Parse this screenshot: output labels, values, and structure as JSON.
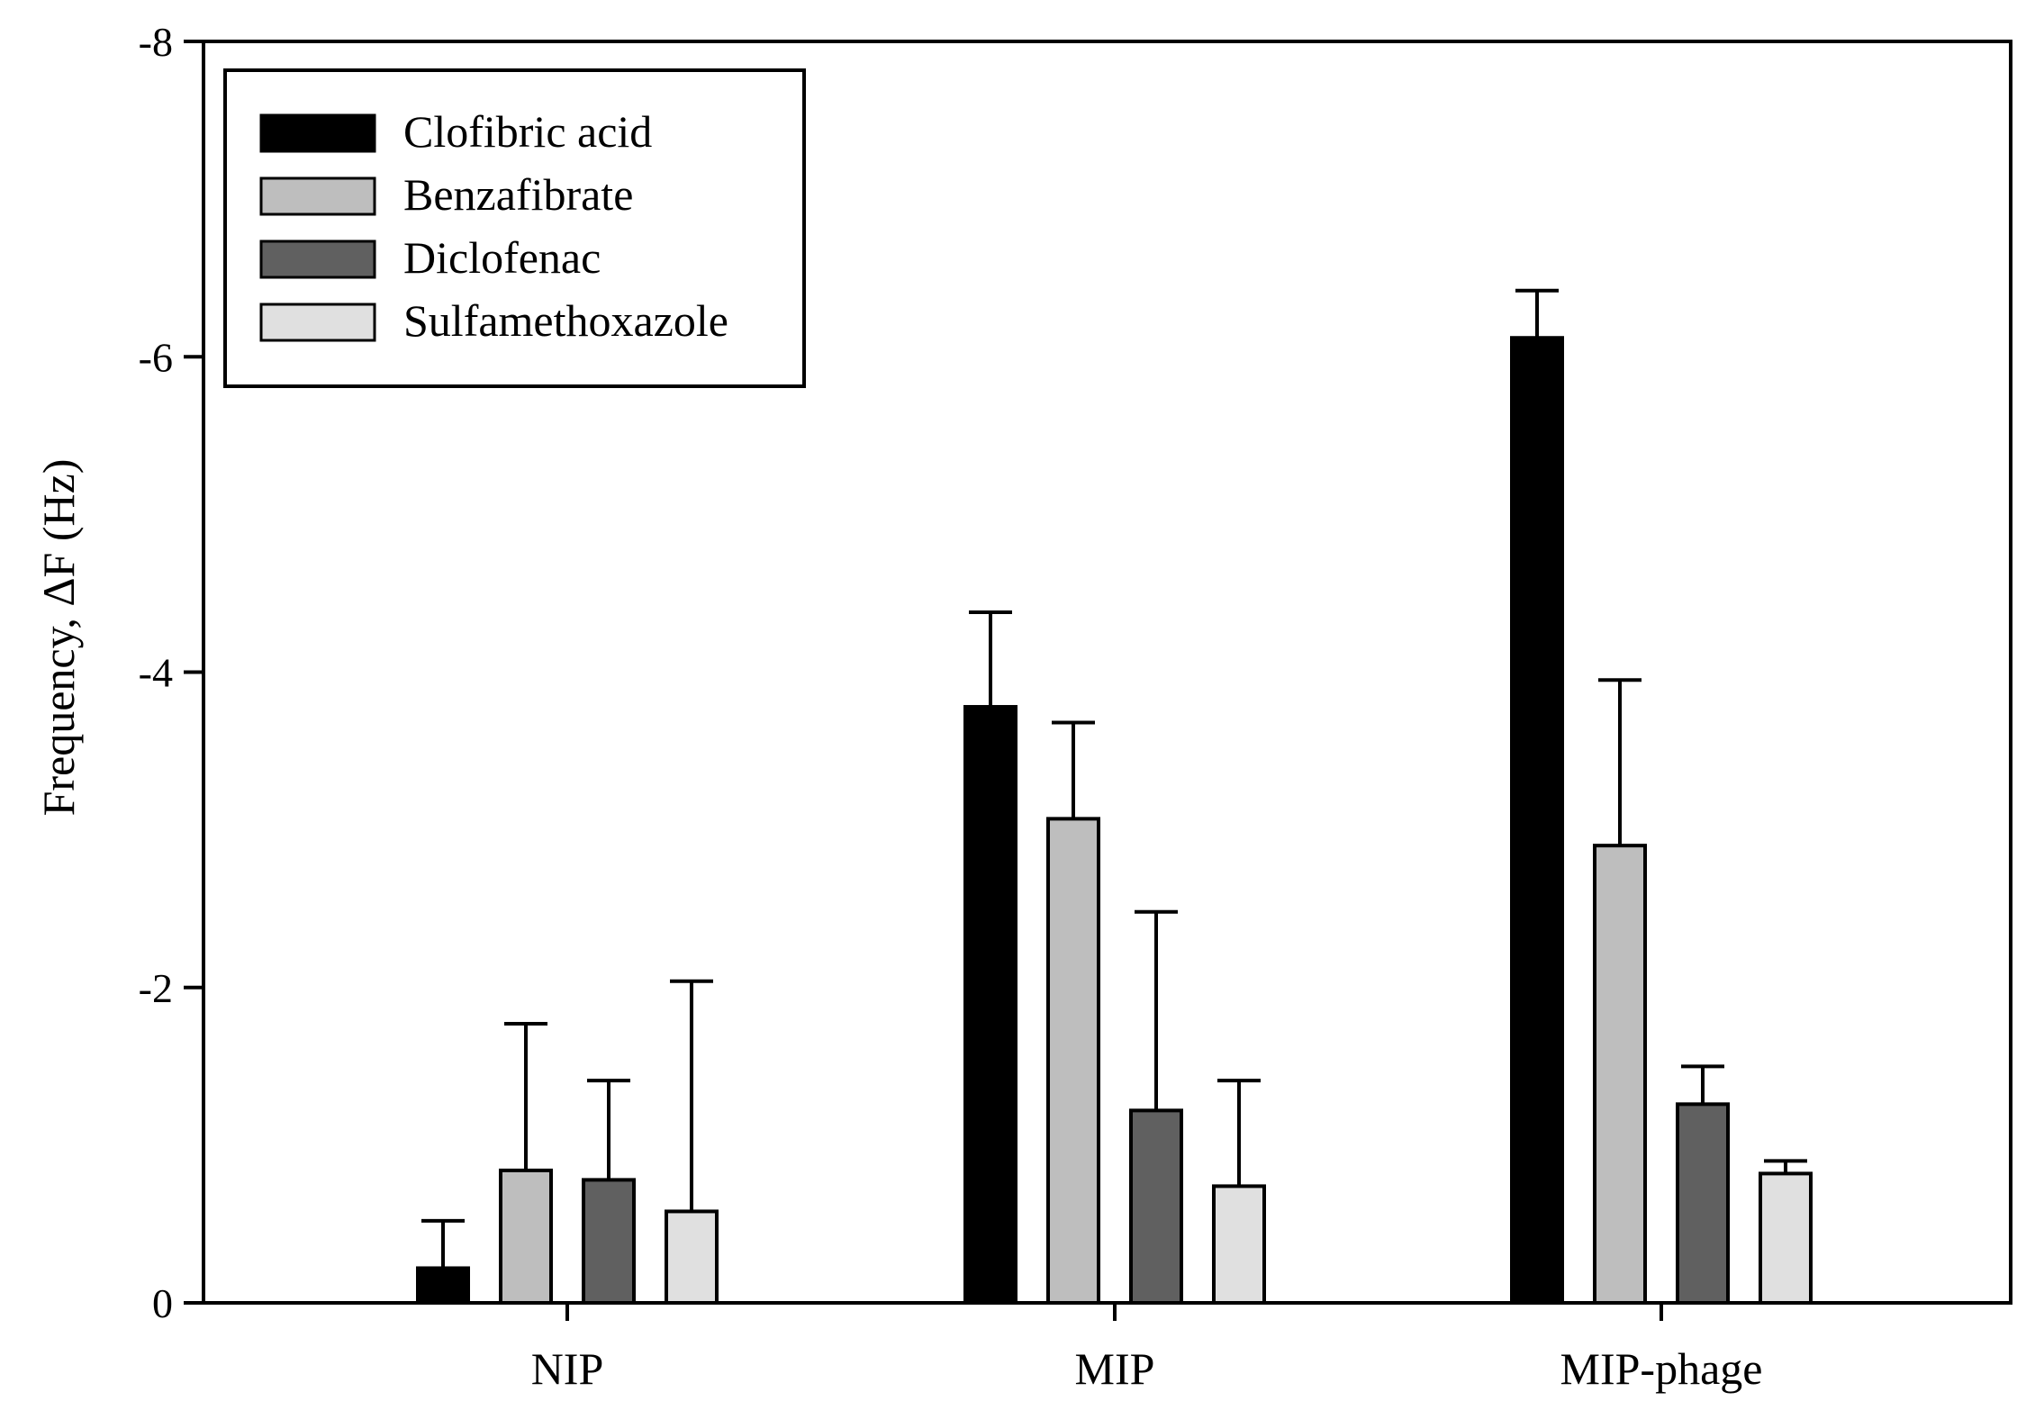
{
  "chart_data": {
    "type": "bar",
    "title": "",
    "xlabel": "",
    "ylabel": "Frequency, ΔF (Hz)",
    "ylim": [
      0,
      -8
    ],
    "yticks": [
      0,
      -2,
      -4,
      -6,
      -8
    ],
    "ytick_labels": [
      "0",
      "-2",
      "-4",
      "-6",
      "-8"
    ],
    "grid": false,
    "legend_position": "top-left",
    "categories": [
      "NIP",
      "MIP",
      "MIP-phage"
    ],
    "series": [
      {
        "name": "Clofibric acid",
        "color": "#000000",
        "values": [
          -0.22,
          -3.78,
          -6.12
        ],
        "errors": [
          0.3,
          0.6,
          0.3
        ]
      },
      {
        "name": "Benzafibrate",
        "color": "#bebebe",
        "values": [
          -0.84,
          -3.07,
          -2.9
        ],
        "errors": [
          0.93,
          0.61,
          1.05
        ]
      },
      {
        "name": "Diclofenac",
        "color": "#606060",
        "values": [
          -0.78,
          -1.22,
          -1.26
        ],
        "errors": [
          0.63,
          1.26,
          0.24
        ]
      },
      {
        "name": "Sulfamethoxazole",
        "color": "#e0e0e0",
        "values": [
          -0.58,
          -0.74,
          -0.82
        ],
        "errors": [
          1.46,
          0.67,
          0.08
        ]
      }
    ]
  }
}
